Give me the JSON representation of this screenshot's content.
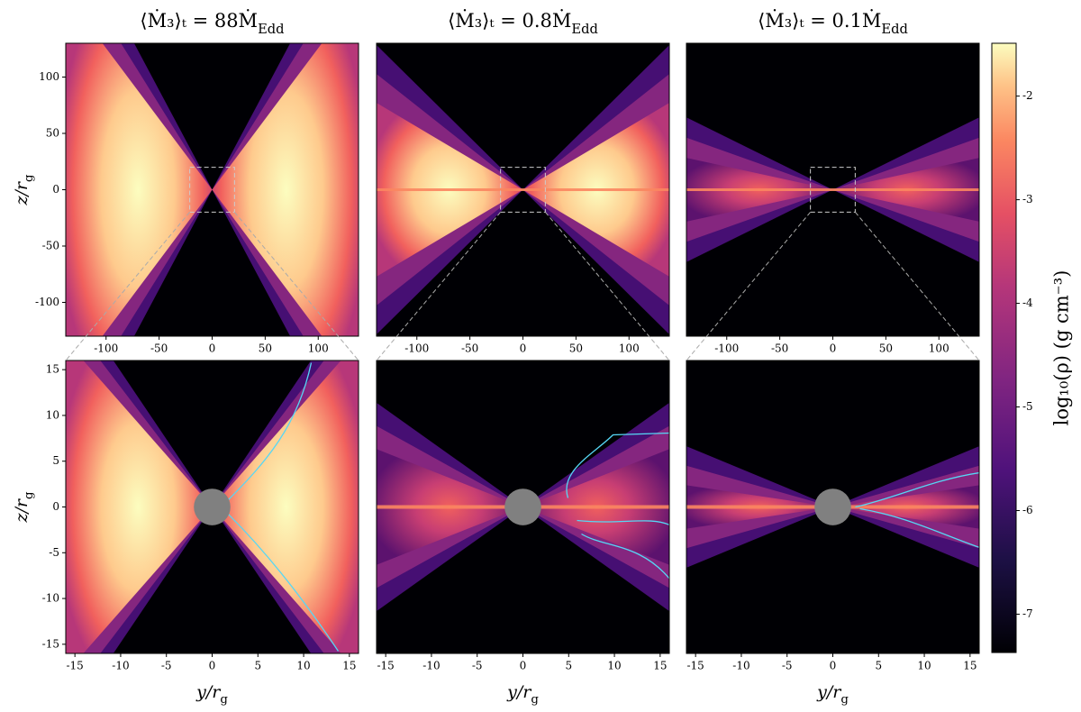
{
  "chart_data": [
    {
      "type": "heatmap",
      "title": "⟨Ṁ₃⟩ₜ = 88Ṁ",
      "title_sub": "Edd",
      "ylabel": "z/r",
      "ylabel_sub": "g",
      "xlim": [
        -138,
        138
      ],
      "ylim": [
        -130,
        130
      ],
      "xticks": [
        -100,
        -50,
        0,
        50,
        100
      ],
      "yticks": [
        -100,
        -50,
        0,
        50,
        100
      ]
    },
    {
      "type": "heatmap",
      "title": "⟨Ṁ₃⟩ₜ = 0.8Ṁ",
      "title_sub": "Edd",
      "xlim": [
        -138,
        138
      ],
      "ylim": [
        -130,
        130
      ],
      "xticks": [
        -100,
        -50,
        0,
        50,
        100
      ]
    },
    {
      "type": "heatmap",
      "title": "⟨Ṁ₃⟩ₜ = 0.1Ṁ",
      "title_sub": "Edd",
      "xlim": [
        -138,
        138
      ],
      "ylim": [
        -130,
        130
      ],
      "xticks": [
        -100,
        -50,
        0,
        50,
        100
      ]
    },
    {
      "type": "heatmap",
      "ylabel": "z/r",
      "ylabel_sub": "g",
      "xlabel": "y/r",
      "xlabel_sub": "g",
      "xlim": [
        -16,
        16
      ],
      "ylim": [
        -16,
        16
      ],
      "xticks": [
        -15,
        -10,
        -5,
        0,
        5,
        10,
        15
      ],
      "yticks": [
        -15,
        -10,
        -5,
        0,
        5,
        10,
        15
      ]
    },
    {
      "type": "heatmap",
      "xlabel": "y/r",
      "xlabel_sub": "g",
      "xlim": [
        -16,
        16
      ],
      "ylim": [
        -16,
        16
      ],
      "xticks": [
        -15,
        -10,
        -5,
        0,
        5,
        10,
        15
      ]
    },
    {
      "type": "heatmap",
      "xlabel": "y/r",
      "xlabel_sub": "g",
      "xlim": [
        -16,
        16
      ],
      "ylim": [
        -16,
        16
      ],
      "xticks": [
        -15,
        -10,
        -5,
        0,
        5,
        10,
        15
      ]
    }
  ],
  "colorbar": {
    "label": "log₁₀(ρ) (g cm⁻³)",
    "lim": [
      -7.37,
      -1.49
    ],
    "ticks": [
      -7,
      -6,
      -5,
      -4,
      -3,
      -2
    ]
  }
}
